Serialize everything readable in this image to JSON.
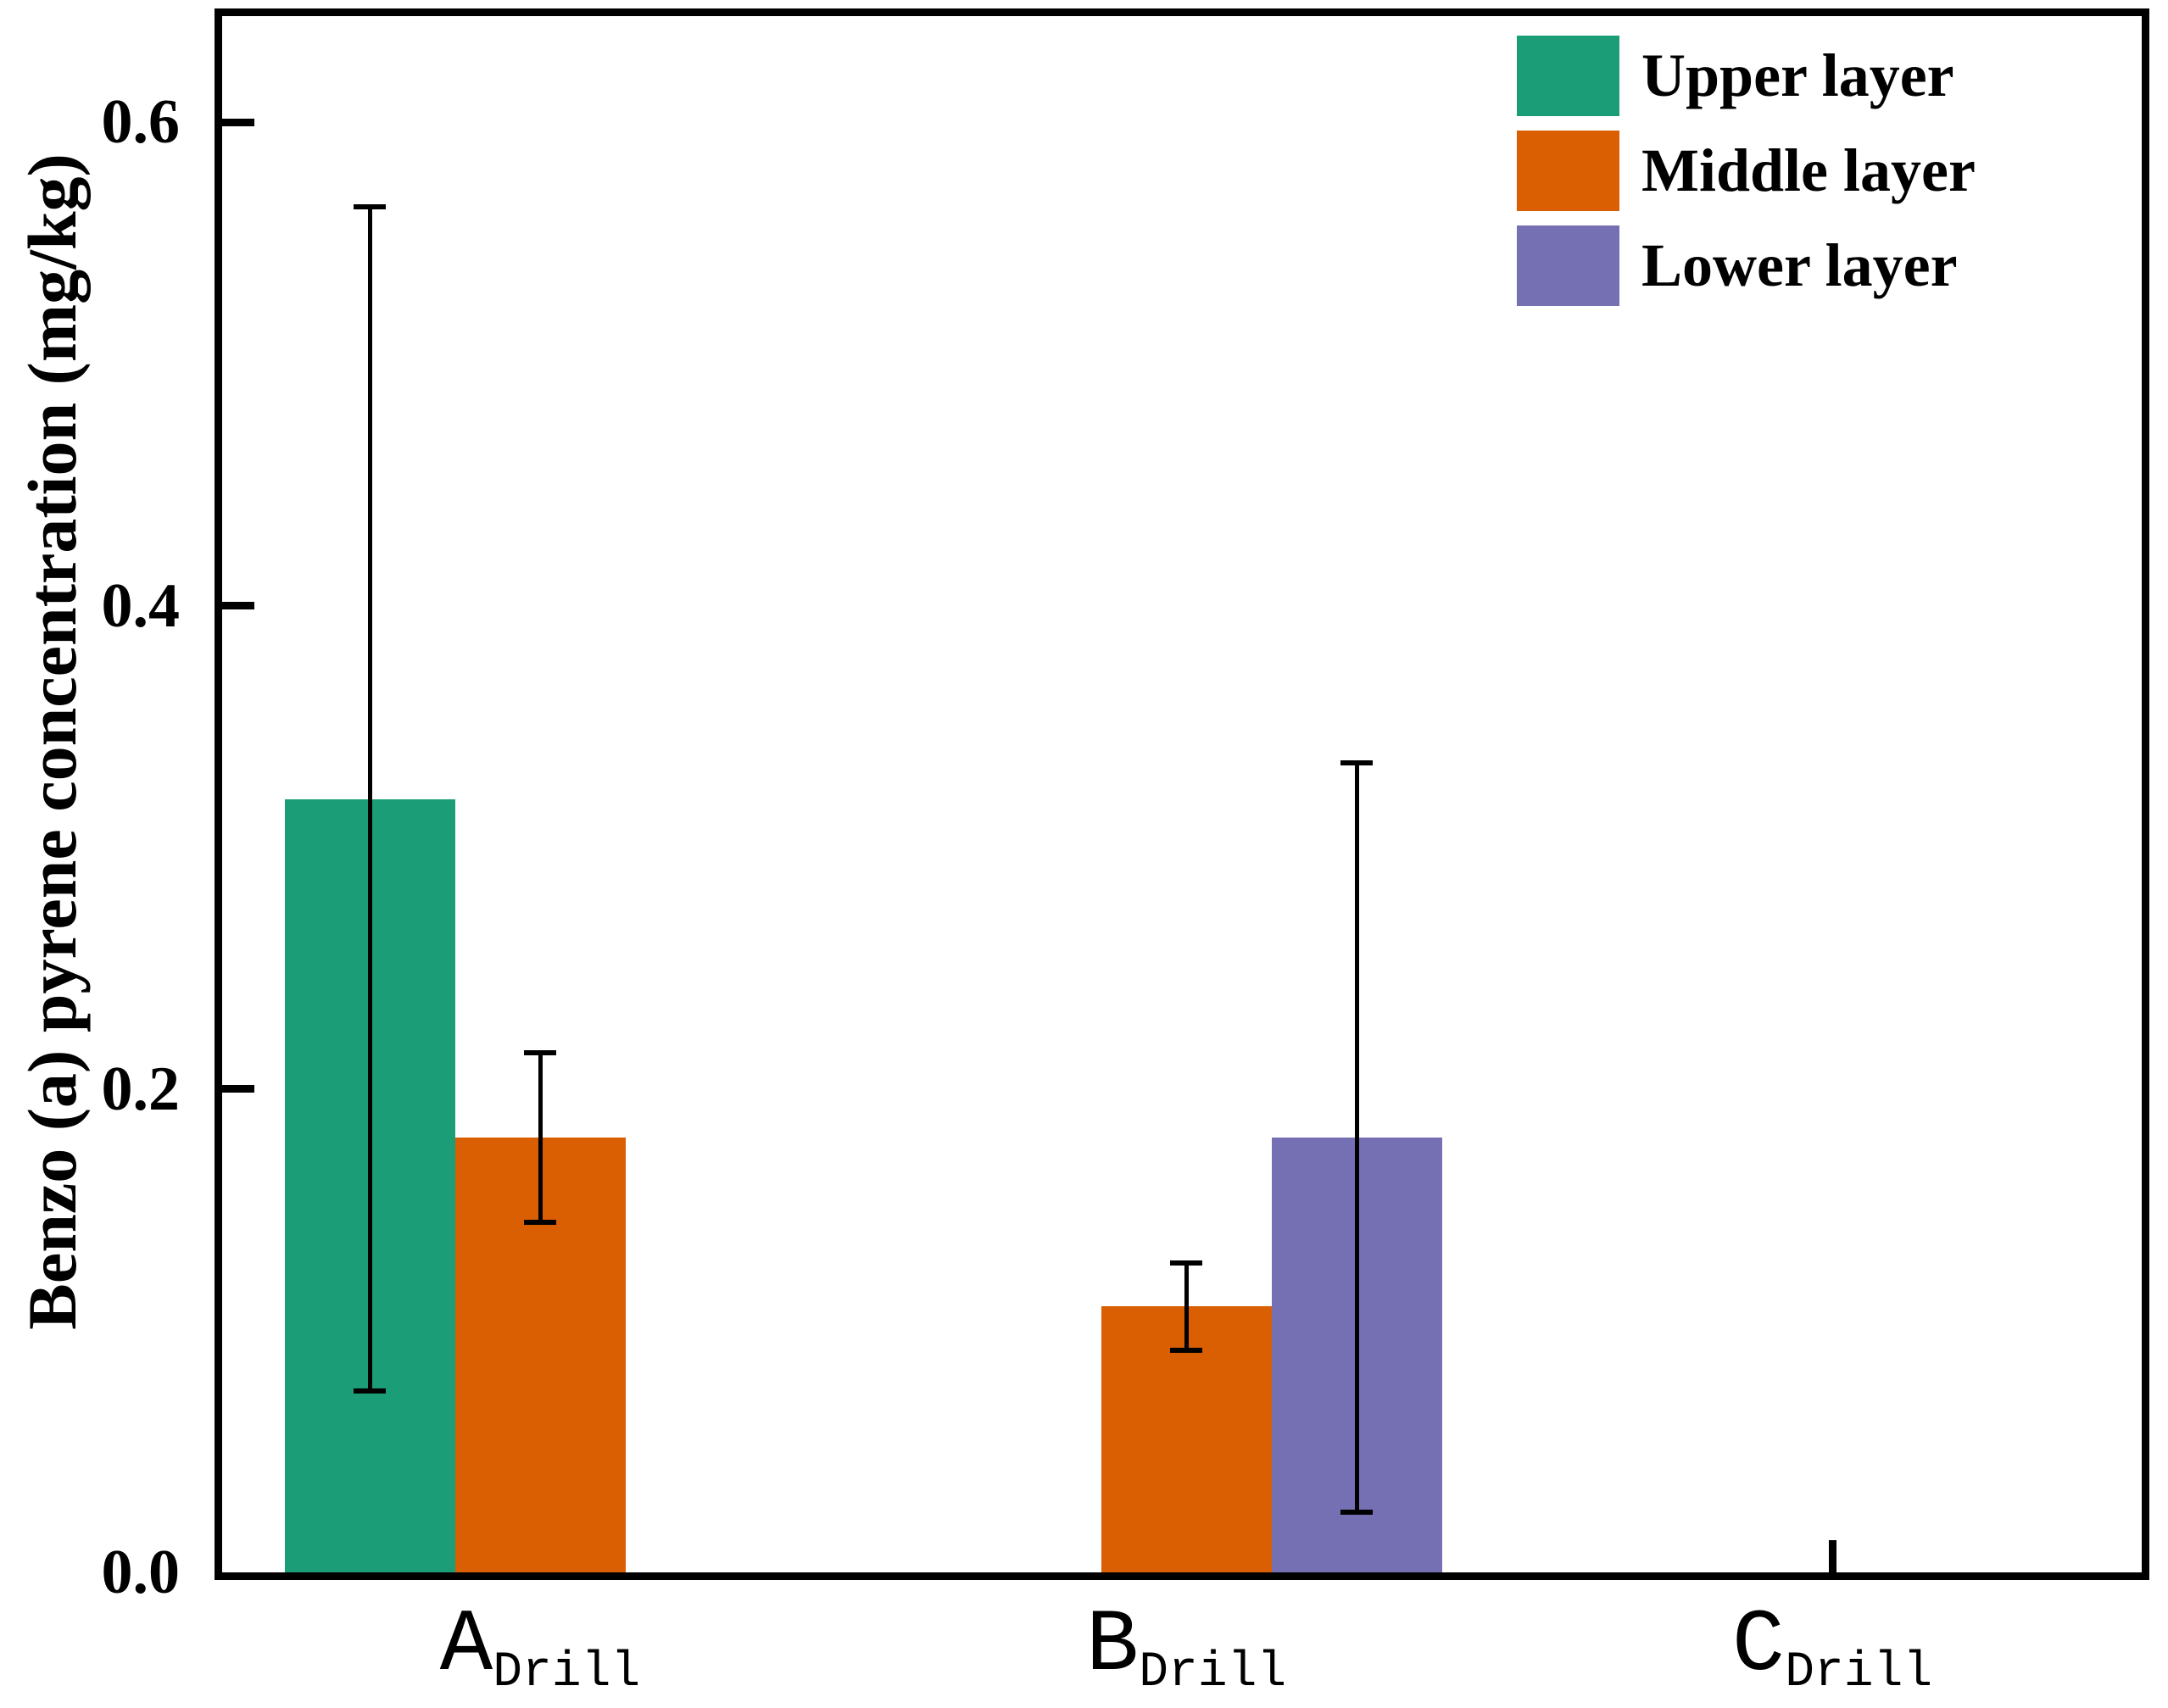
{
  "chart_data": {
    "type": "bar",
    "title": "",
    "xlabel": "",
    "ylabel": "Benzo (a) pyrene concentration (mg/kg)",
    "ylim": [
      0,
      0.644
    ],
    "grid": false,
    "background": "#ffffff",
    "axis_color": "#000000",
    "error_bar_color": "#000000",
    "yticks": [
      {
        "value": 0.0,
        "label": "0.0"
      },
      {
        "value": 0.2,
        "label": "0.2"
      },
      {
        "value": 0.4,
        "label": "0.4"
      },
      {
        "value": 0.6,
        "label": "0.6"
      }
    ],
    "categories": [
      {
        "main": "A",
        "sub": "Drill"
      },
      {
        "main": "B",
        "sub": "Drill"
      },
      {
        "main": "C",
        "sub": "Drill"
      }
    ],
    "series": [
      {
        "name": "Upper layer",
        "color": "#1b9e77",
        "values": [
          0.32,
          0,
          0
        ],
        "errors": [
          0.245,
          0,
          0
        ]
      },
      {
        "name": "Middle layer",
        "color": "#d95f02",
        "values": [
          0.18,
          0.11,
          0
        ],
        "errors": [
          0.035,
          0.018,
          0
        ]
      },
      {
        "name": "Lower layer",
        "color": "#7570b3",
        "values": [
          0,
          0.18,
          0
        ],
        "errors": [
          0,
          0.155,
          0
        ]
      }
    ],
    "legend": {
      "position": "top-right",
      "frame": false
    }
  }
}
